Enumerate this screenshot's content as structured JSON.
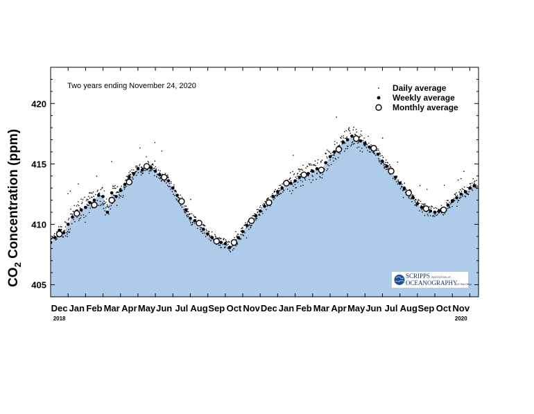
{
  "chart_data": {
    "type": "area",
    "title": "",
    "annotation": "Two years ending November 24, 2020",
    "ylabel_main": "CO",
    "ylabel_sub": "2",
    "ylabel_rest": " Concentration (ppm)",
    "xlabel": "",
    "ylim": [
      404,
      423
    ],
    "yticks": [
      405,
      410,
      415,
      420
    ],
    "ytick_labels": [
      "405",
      "410",
      "415",
      "420"
    ],
    "xlim": [
      0,
      24.5
    ],
    "xticks": [
      {
        "label": "Dec",
        "m": 0.5
      },
      {
        "label": "Jan",
        "m": 1.5
      },
      {
        "label": "Feb",
        "m": 2.5
      },
      {
        "label": "Mar",
        "m": 3.5
      },
      {
        "label": "Apr",
        "m": 4.5
      },
      {
        "label": "May",
        "m": 5.5
      },
      {
        "label": "Jun",
        "m": 6.5
      },
      {
        "label": "Jul",
        "m": 7.5
      },
      {
        "label": "Aug",
        "m": 8.5
      },
      {
        "label": "Sep",
        "m": 9.5
      },
      {
        "label": "Oct",
        "m": 10.5
      },
      {
        "label": "Nov",
        "m": 11.5
      },
      {
        "label": "Dec",
        "m": 12.5
      },
      {
        "label": "Jan",
        "m": 13.5
      },
      {
        "label": "Feb",
        "m": 14.5
      },
      {
        "label": "Mar",
        "m": 15.5
      },
      {
        "label": "Apr",
        "m": 16.5
      },
      {
        "label": "May",
        "m": 17.5
      },
      {
        "label": "Jun",
        "m": 18.5
      },
      {
        "label": "Jul",
        "m": 19.5
      },
      {
        "label": "Aug",
        "m": 20.5
      },
      {
        "label": "Sep",
        "m": 21.5
      },
      {
        "label": "Oct",
        "m": 22.5
      },
      {
        "label": "Nov",
        "m": 23.5
      }
    ],
    "year_labels": [
      {
        "label": "2018",
        "m": 0.5
      },
      {
        "label": "2020",
        "m": 23.5
      }
    ],
    "legend": {
      "placement": "top-right",
      "entries": [
        {
          "name": "Daily average",
          "marker": "dot"
        },
        {
          "name": "Weekly average",
          "marker": "filled-circle"
        },
        {
          "name": "Monthly average",
          "marker": "open-circle"
        }
      ]
    },
    "series": [
      {
        "name": "Monthly average",
        "x": [
          0.5,
          1.5,
          2.5,
          3.5,
          4.5,
          5.5,
          6.5,
          7.5,
          8.5,
          9.5,
          10.5,
          11.5,
          12.5,
          13.5,
          14.5,
          15.5,
          16.5,
          17.5,
          18.5,
          19.5,
          20.5,
          21.5,
          22.5
        ],
        "values": [
          409.2,
          410.9,
          411.6,
          412.0,
          413.5,
          414.8,
          413.9,
          411.9,
          410.1,
          408.6,
          408.5,
          410.3,
          411.8,
          413.4,
          414.1,
          414.5,
          416.2,
          417.1,
          416.3,
          414.4,
          412.6,
          411.3,
          411.2
        ]
      },
      {
        "name": "Weekly average",
        "x": [
          0.0,
          0.25,
          0.5,
          0.75,
          1.0,
          1.25,
          1.5,
          1.75,
          2.0,
          2.25,
          2.5,
          2.75,
          3.0,
          3.25,
          3.5,
          3.75,
          4.0,
          4.25,
          4.5,
          4.75,
          5.0,
          5.25,
          5.5,
          5.75,
          6.0,
          6.25,
          6.5,
          6.75,
          7.0,
          7.25,
          7.5,
          7.75,
          8.0,
          8.25,
          8.5,
          8.75,
          9.0,
          9.25,
          9.5,
          9.75,
          10.0,
          10.25,
          10.5,
          10.75,
          11.0,
          11.25,
          11.5,
          11.75,
          12.0,
          12.25,
          12.5,
          12.75,
          13.0,
          13.25,
          13.5,
          13.75,
          14.0,
          14.25,
          14.5,
          14.75,
          15.0,
          15.25,
          15.5,
          15.75,
          16.0,
          16.25,
          16.5,
          16.75,
          17.0,
          17.25,
          17.5,
          17.75,
          18.0,
          18.25,
          18.5,
          18.75,
          19.0,
          19.25,
          19.5,
          19.75,
          20.0,
          20.25,
          20.5,
          20.75,
          21.0,
          21.25,
          21.5,
          21.75,
          22.0,
          22.25,
          22.5,
          22.75,
          23.0,
          23.25,
          23.5,
          23.75,
          24.0,
          24.25
        ],
        "values": [
          408.5,
          408.9,
          409.5,
          409.3,
          410.0,
          410.6,
          411.1,
          411.2,
          411.4,
          411.8,
          412.0,
          412.4,
          412.3,
          411.0,
          412.6,
          412.3,
          412.8,
          413.3,
          413.9,
          414.2,
          414.6,
          414.5,
          414.9,
          414.7,
          414.4,
          414.1,
          413.9,
          413.6,
          413.0,
          412.4,
          411.9,
          411.2,
          410.5,
          410.3,
          410.0,
          409.6,
          409.2,
          408.9,
          408.6,
          408.5,
          408.4,
          408.1,
          408.4,
          408.9,
          409.4,
          409.9,
          410.2,
          410.7,
          411.1,
          411.5,
          411.8,
          412.3,
          412.7,
          413.0,
          413.3,
          413.4,
          413.6,
          413.9,
          414.1,
          414.2,
          414.4,
          414.6,
          414.5,
          415.1,
          415.6,
          416.0,
          416.4,
          416.8,
          417.0,
          417.3,
          417.2,
          416.9,
          416.7,
          416.4,
          416.2,
          415.8,
          415.2,
          414.8,
          414.4,
          413.9,
          413.4,
          413.0,
          412.6,
          412.2,
          411.7,
          411.4,
          411.2,
          411.1,
          411.0,
          411.1,
          411.2,
          411.6,
          411.9,
          412.2,
          412.5,
          412.7,
          413.0,
          413.2
        ]
      }
    ],
    "area_fill_color": "#aecbe9",
    "grid": false
  },
  "logo": {
    "line1": "SCRIPPS",
    "line1_small": "INSTITUTION OF",
    "line2": "OCEANOGRAPHY",
    "line2_small": "UC San Diego"
  }
}
